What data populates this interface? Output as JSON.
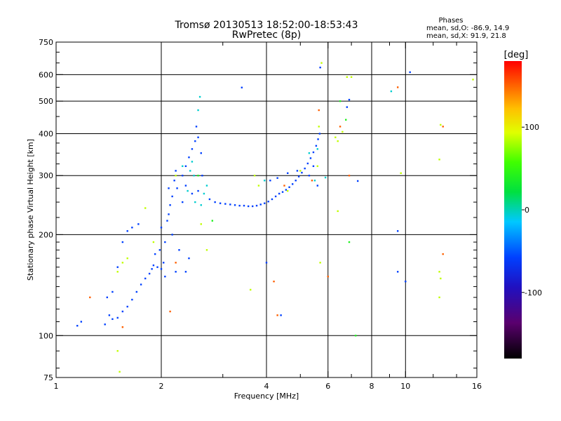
{
  "chart_data": {
    "type": "scatter",
    "title": "Tromsø 20130513 18:52:00-18:53:43",
    "subtitle": "RwPretec (8p)",
    "xlabel": "Frequency [MHz]",
    "ylabel": "Stationary phase Virtual Height [km]",
    "x_scale": "log",
    "y_scale": "log",
    "xlim": [
      1,
      16
    ],
    "ylim": [
      75,
      750
    ],
    "x_ticks": [
      1,
      2,
      4,
      6,
      8,
      10,
      16
    ],
    "x_tick_labels": [
      "1",
      "2",
      "4",
      "6",
      "8",
      "10",
      "16"
    ],
    "x_gridlines": [
      2,
      4,
      6,
      8,
      10
    ],
    "y_ticks": [
      75,
      100,
      200,
      300,
      400,
      500,
      600,
      750
    ],
    "y_tick_labels": [
      "75",
      "100",
      "200",
      "300",
      "400",
      "500",
      "600",
      "750"
    ],
    "y_gridlines": [
      100,
      200,
      300,
      400,
      500,
      600
    ],
    "grid": true,
    "colorbar": {
      "label": "[deg]",
      "range": [
        -180,
        180
      ],
      "ticks": [
        100,
        0,
        -100
      ],
      "tick_labels": [
        "100",
        "0",
        "-100"
      ],
      "colormap": "rainbow"
    },
    "stats": {
      "title": "Phases",
      "line_o": "mean, sd,O: -86.9, 14.9",
      "line_x": "mean, sd,X:  91.9, 21.8"
    },
    "series": [
      {
        "phase_deg": -100,
        "points": [
          [
            1.15,
            107
          ],
          [
            1.18,
            110
          ],
          [
            1.38,
            108
          ],
          [
            1.42,
            115
          ],
          [
            1.45,
            112
          ],
          [
            1.5,
            113
          ],
          [
            1.55,
            118
          ],
          [
            1.6,
            122
          ],
          [
            1.65,
            128
          ],
          [
            1.7,
            135
          ],
          [
            1.75,
            142
          ],
          [
            1.8,
            148
          ],
          [
            1.85,
            153
          ],
          [
            1.88,
            158
          ],
          [
            1.9,
            162
          ],
          [
            1.95,
            160
          ],
          [
            2.0,
            158
          ],
          [
            2.03,
            165
          ],
          [
            1.92,
            175
          ],
          [
            1.98,
            180
          ],
          [
            2.05,
            190
          ],
          [
            2.0,
            210
          ],
          [
            2.08,
            220
          ],
          [
            2.1,
            230
          ],
          [
            2.12,
            245
          ],
          [
            2.15,
            260
          ],
          [
            2.1,
            275
          ],
          [
            2.18,
            290
          ],
          [
            2.22,
            275
          ],
          [
            2.3,
            300
          ],
          [
            2.35,
            320
          ],
          [
            2.4,
            340
          ],
          [
            2.45,
            360
          ],
          [
            2.5,
            380
          ],
          [
            2.52,
            420
          ],
          [
            2.55,
            390
          ],
          [
            2.6,
            350
          ],
          [
            2.35,
            280
          ],
          [
            2.45,
            265
          ],
          [
            2.55,
            270
          ],
          [
            2.62,
            300
          ],
          [
            2.2,
            310
          ],
          [
            2.3,
            250
          ],
          [
            2.25,
            180
          ],
          [
            2.15,
            200
          ],
          [
            2.05,
            150
          ],
          [
            2.2,
            155
          ],
          [
            2.35,
            155
          ],
          [
            2.4,
            170
          ],
          [
            1.65,
            210
          ],
          [
            1.72,
            215
          ],
          [
            1.6,
            205
          ],
          [
            1.55,
            190
          ],
          [
            1.5,
            160
          ],
          [
            1.45,
            135
          ],
          [
            1.4,
            130
          ],
          [
            2.75,
            255
          ],
          [
            2.85,
            250
          ],
          [
            2.95,
            248
          ],
          [
            3.05,
            247
          ],
          [
            3.15,
            246
          ],
          [
            3.25,
            245
          ],
          [
            3.35,
            244
          ],
          [
            3.45,
            244
          ],
          [
            3.55,
            243
          ],
          [
            3.65,
            243
          ],
          [
            3.75,
            244
          ],
          [
            3.85,
            246
          ],
          [
            3.95,
            248
          ],
          [
            4.05,
            251
          ],
          [
            4.15,
            255
          ],
          [
            4.25,
            260
          ],
          [
            4.35,
            265
          ],
          [
            4.45,
            268
          ],
          [
            4.55,
            272
          ],
          [
            4.65,
            277
          ],
          [
            4.75,
            283
          ],
          [
            4.85,
            290
          ],
          [
            4.95,
            298
          ],
          [
            5.05,
            306
          ],
          [
            5.15,
            315
          ],
          [
            5.25,
            326
          ],
          [
            5.35,
            338
          ],
          [
            5.45,
            352
          ],
          [
            5.55,
            368
          ],
          [
            5.62,
            385
          ],
          [
            5.68,
            400
          ],
          [
            5.45,
            320
          ],
          [
            5.3,
            300
          ],
          [
            4.9,
            310
          ],
          [
            4.6,
            305
          ],
          [
            4.3,
            295
          ],
          [
            4.1,
            290
          ],
          [
            3.4,
            549
          ],
          [
            5.7,
            630
          ],
          [
            6.9,
            505
          ],
          [
            6.8,
            480
          ],
          [
            7.3,
            289
          ],
          [
            9.5,
            205
          ],
          [
            9.5,
            155
          ],
          [
            10,
            145
          ],
          [
            10.3,
            610
          ],
          [
            4.0,
            165
          ],
          [
            4.4,
            115
          ],
          [
            5.6,
            280
          ]
        ]
      },
      {
        "phase_deg": -30,
        "points": [
          [
            2.3,
            320
          ],
          [
            2.55,
            470
          ],
          [
            2.58,
            515
          ],
          [
            2.65,
            265
          ],
          [
            2.7,
            280
          ],
          [
            2.48,
            300
          ],
          [
            2.42,
            310
          ],
          [
            2.5,
            250
          ],
          [
            2.6,
            245
          ],
          [
            2.38,
            270
          ],
          [
            2.45,
            330
          ],
          [
            3.95,
            290
          ],
          [
            5.3,
            350
          ],
          [
            5.5,
            290
          ],
          [
            5.9,
            296
          ],
          [
            5.6,
            360
          ],
          [
            9.1,
            535
          ]
        ]
      },
      {
        "phase_deg": 20,
        "points": [
          [
            6.5,
            500
          ],
          [
            6.75,
            440
          ],
          [
            6.9,
            190
          ],
          [
            2.8,
            220
          ],
          [
            7.2,
            100
          ],
          [
            2.55,
            300
          ]
        ]
      },
      {
        "phase_deg": 80,
        "points": [
          [
            1.5,
            155
          ],
          [
            1.55,
            165
          ],
          [
            1.6,
            170
          ],
          [
            1.8,
            240
          ],
          [
            1.9,
            190
          ],
          [
            2.7,
            180
          ],
          [
            2.6,
            215
          ],
          [
            2.2,
            300
          ],
          [
            3.6,
            137
          ],
          [
            3.7,
            300
          ],
          [
            3.8,
            280
          ],
          [
            4.6,
            270
          ],
          [
            5.0,
            310
          ],
          [
            5.6,
            320
          ],
          [
            5.65,
            420
          ],
          [
            5.75,
            650
          ],
          [
            6.3,
            390
          ],
          [
            6.4,
            380
          ],
          [
            6.6,
            405
          ],
          [
            6.8,
            590
          ],
          [
            7.0,
            590
          ],
          [
            12.5,
            335
          ],
          [
            12.5,
            155
          ],
          [
            12.6,
            148
          ],
          [
            12.5,
            130
          ],
          [
            12.6,
            425
          ],
          [
            15.6,
            580
          ],
          [
            1.5,
            90
          ],
          [
            1.52,
            78
          ],
          [
            9.7,
            305
          ],
          [
            6.4,
            235
          ],
          [
            5.7,
            165
          ]
        ]
      },
      {
        "phase_deg": 150,
        "points": [
          [
            1.25,
            130
          ],
          [
            1.55,
            106
          ],
          [
            2.12,
            118
          ],
          [
            2.2,
            165
          ],
          [
            4.5,
            280
          ],
          [
            4.3,
            115
          ],
          [
            5.65,
            470
          ],
          [
            5.4,
            290
          ],
          [
            6.5,
            420
          ],
          [
            6.9,
            300
          ],
          [
            9.5,
            550
          ],
          [
            12.8,
            175
          ],
          [
            12.8,
            420
          ],
          [
            4.2,
            145
          ],
          [
            6.0,
            150
          ]
        ]
      }
    ]
  }
}
